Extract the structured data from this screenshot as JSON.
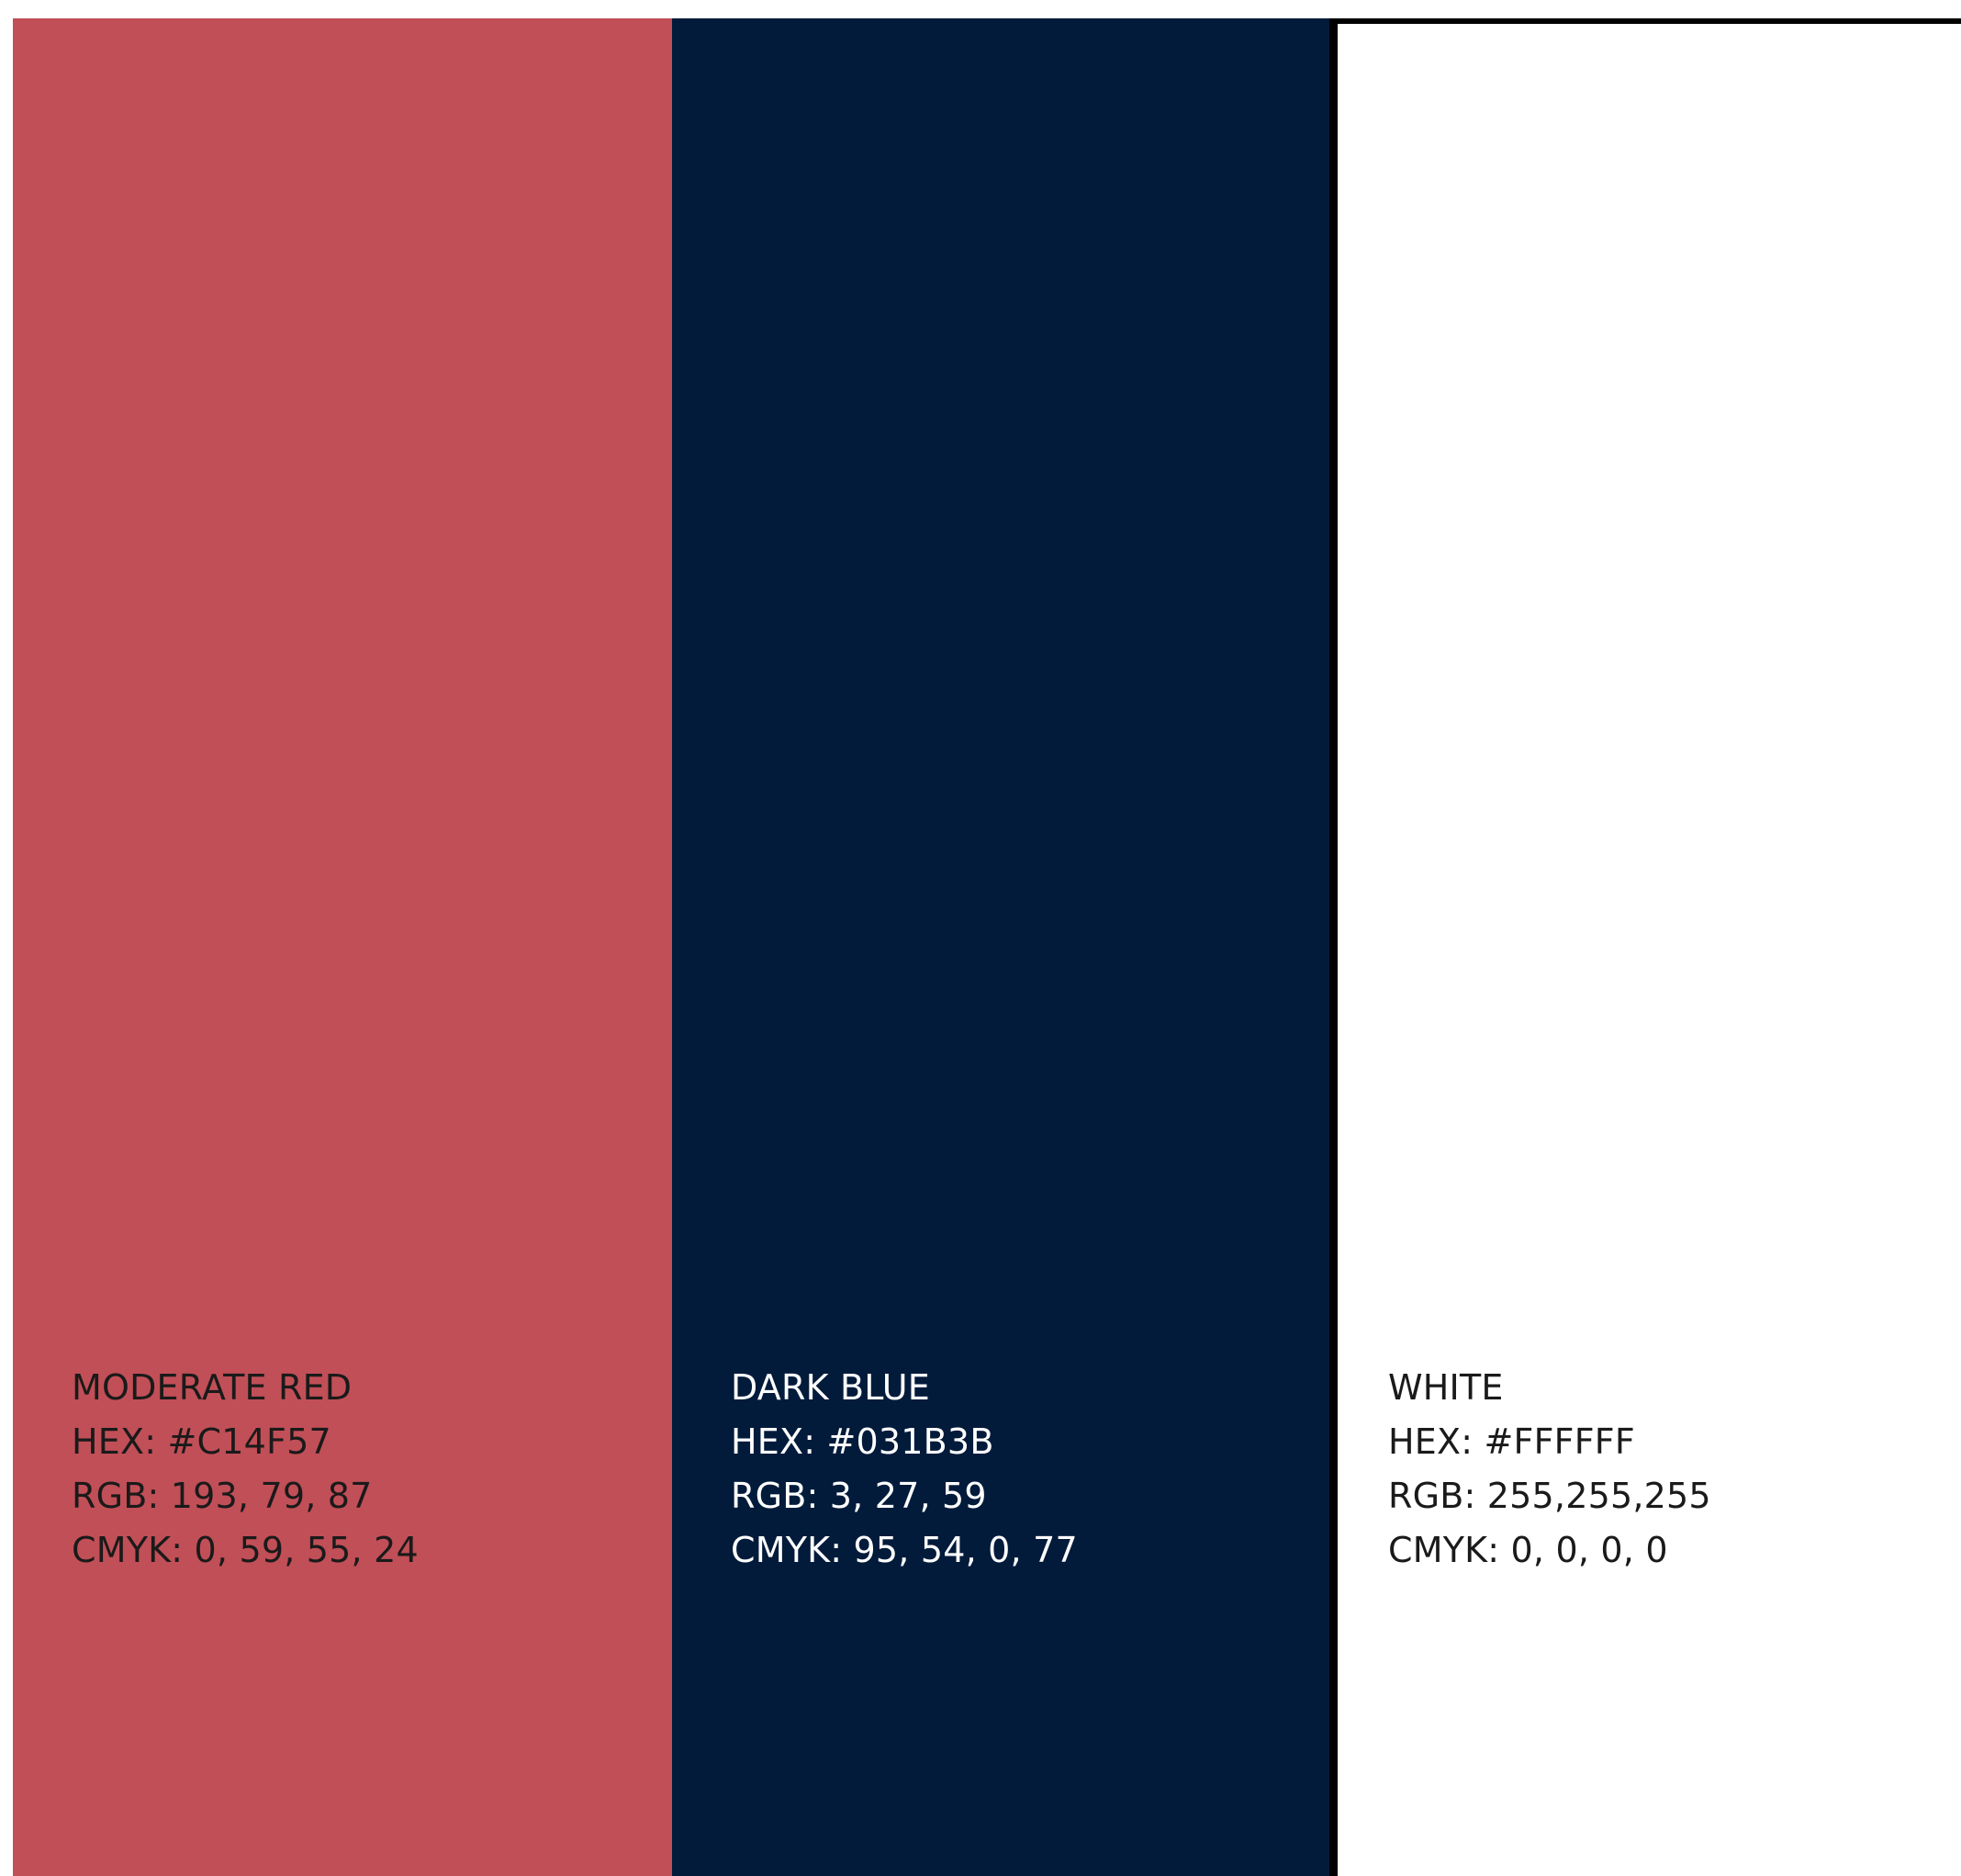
{
  "swatches": [
    {
      "name": "MODERATE RED",
      "hex": "HEX: #C14F57",
      "rgb": "RGB: 193, 79, 87",
      "cmyk": "CMYK: 0, 59, 55, 24",
      "fill_color": "#C14F57",
      "text_color": "#1a1a1a"
    },
    {
      "name": "DARK BLUE",
      "hex": "HEX: #031B3B",
      "rgb": "RGB: 3, 27, 59",
      "cmyk": "CMYK: 95, 54, 0, 77",
      "fill_color": "#031B3B",
      "text_color": "#ffffff"
    },
    {
      "name": "WHITE",
      "hex": "HEX: #FFFFFF",
      "rgb": "RGB: 255,255,255",
      "cmyk": "CMYK: 0, 0, 0, 0",
      "fill_color": "#FFFFFF",
      "text_color": "#1a1a1a"
    }
  ]
}
